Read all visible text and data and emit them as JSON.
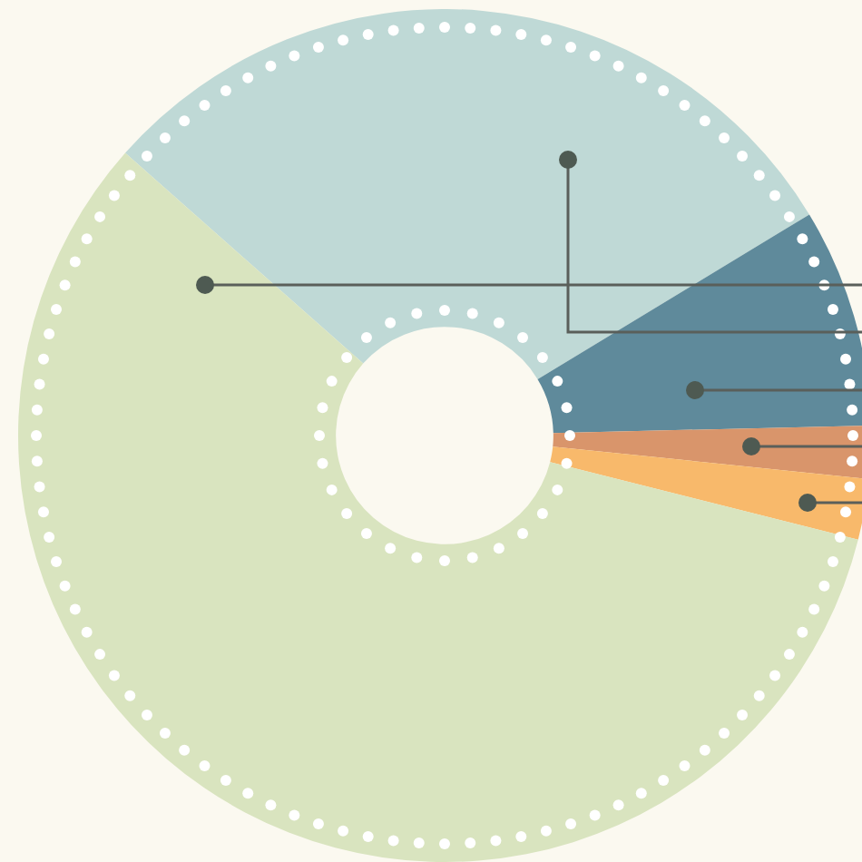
{
  "chart_data": {
    "type": "donut",
    "categories": [
      null,
      null,
      null,
      null,
      null
    ],
    "values": [
      29.8,
      8.3,
      2.0,
      2.3,
      57.6
    ],
    "colors": [
      "#bfd9d6",
      "#5f8a9b",
      "#d9956b",
      "#f8b96b",
      "#d9e4bf"
    ]
  }
}
